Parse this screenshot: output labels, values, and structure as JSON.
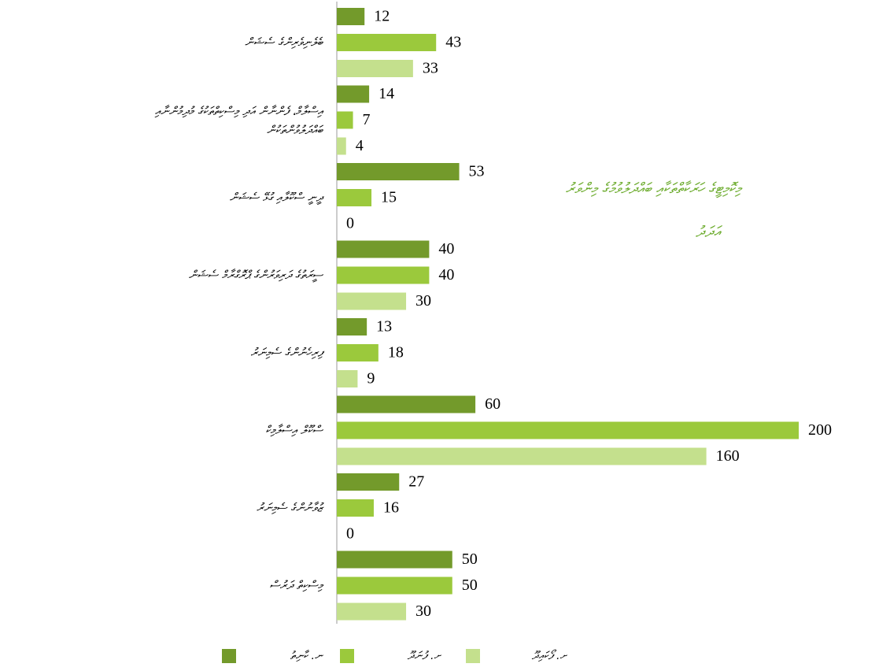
{
  "chart_data": {
    "type": "bar",
    "orientation": "horizontal",
    "title": [
      "މިކޮމިޓީގެ ހަރަކާތްތަކާއި ބައްދަލުވުމުގެ މިންވަރު",
      "އަދަދު"
    ],
    "categories": [
      [
        "ބެލެނިވެރިންގެ ސެޝަން"
      ],
      [
        "އިސްލާމް، ފެންނާން އަދި މިސްކިތްތަކުގެ މުދިމުންނާއި",
        "ބައްދަލުވުންތަކުން"
      ],
      [
        "ދީނީ ސްކޫލާއި ގުޅޭ ސެޝަން"
      ],
      [
        "ސީރަތުގެ ދަރިވަރުންގެ ޕްރޮގްރާމް ސެޝަން"
      ],
      [
        "ފިރިހެނުންގެ ސެމިނަރު"
      ],
      [
        "ސްކޫލް އިސްލާމިކް"
      ],
      [
        "ޒުވާނުންގެ ސެމިނަރު"
      ],
      [
        "މިސްކިތް ދަރުސް"
      ]
    ],
    "series": [
      {
        "name": "ނ. ކާނިތު",
        "color": "#739a2b",
        "values": [
          12,
          14,
          53,
          40,
          13,
          60,
          27,
          50
        ]
      },
      {
        "name": "ށ. ފުނަދޫ",
        "color": "#9bc93c",
        "values": [
          43,
          7,
          15,
          40,
          18,
          200,
          16,
          50
        ]
      },
      {
        "name": "ށ. ފޯކައިދޫ",
        "color": "#c4e08d",
        "values": [
          33,
          4,
          0,
          30,
          9,
          160,
          0,
          30
        ]
      }
    ],
    "xlim": [
      0,
      200
    ]
  }
}
